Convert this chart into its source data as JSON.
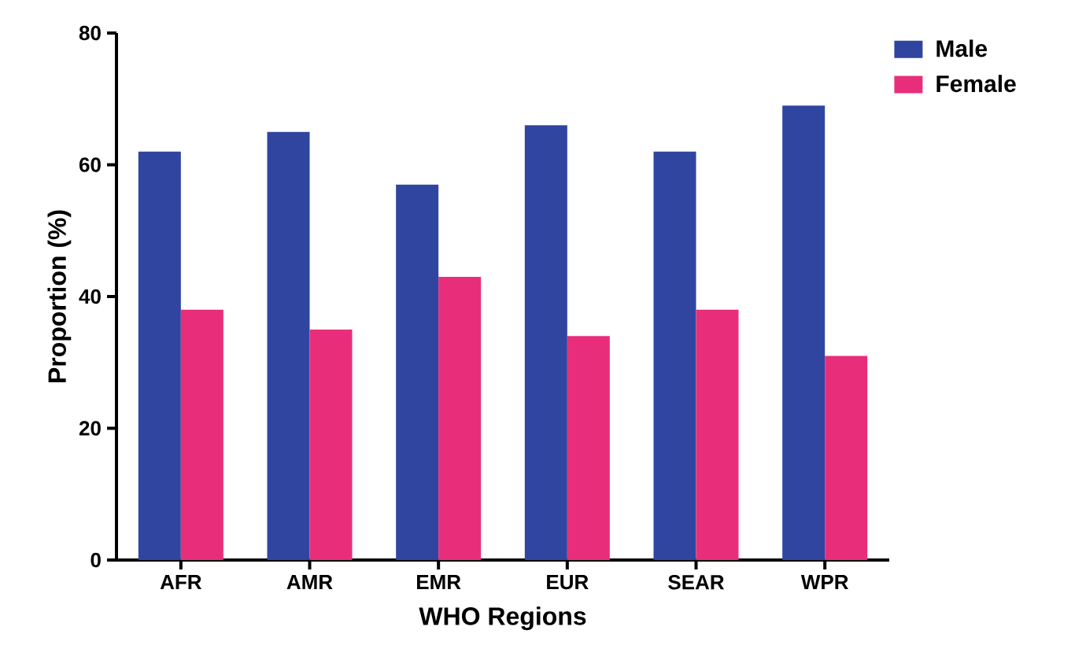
{
  "chart_data": {
    "type": "bar",
    "xlabel": "WHO Regions",
    "ylabel": "Proportion (%)",
    "categories": [
      "AFR",
      "AMR",
      "EMR",
      "EUR",
      "SEAR",
      "WPR"
    ],
    "series": [
      {
        "name": "Male",
        "color": "#3045a0",
        "values": [
          62,
          65,
          57,
          66,
          62,
          69
        ]
      },
      {
        "name": "Female",
        "color": "#e82e7a",
        "values": [
          38,
          35,
          43,
          34,
          38,
          31
        ]
      }
    ],
    "ylim": [
      0,
      80
    ],
    "yticks": [
      0,
      20,
      40,
      60,
      80
    ],
    "legend": "top right"
  }
}
